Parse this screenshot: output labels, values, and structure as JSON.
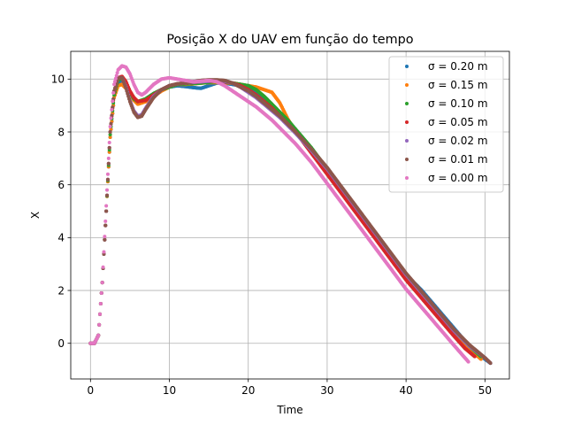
{
  "chart_data": {
    "type": "scatter",
    "title": "Posição X do UAV em função do tempo",
    "xlabel": "Time",
    "ylabel": "X",
    "xlim": [
      -2.5,
      53.1
    ],
    "ylim": [
      -1.35,
      11.05
    ],
    "xticks": [
      0,
      10,
      20,
      30,
      40,
      50
    ],
    "yticks": [
      0,
      2,
      4,
      6,
      8,
      10
    ],
    "grid": true,
    "legend_position": "top-right",
    "series": [
      {
        "name": "σ = 0.20 m",
        "sigma": "0.20",
        "color": "#1f77b4",
        "points": [
          [
            0,
            0
          ],
          [
            0.5,
            0
          ],
          [
            1,
            0.3
          ],
          [
            1.5,
            2.3
          ],
          [
            2,
            5
          ],
          [
            2.5,
            7.8
          ],
          [
            3,
            9.3
          ],
          [
            3.5,
            9.8
          ],
          [
            4,
            9.9
          ],
          [
            4.5,
            9.75
          ],
          [
            5,
            9.5
          ],
          [
            5.5,
            9.3
          ],
          [
            6,
            9.1
          ],
          [
            7,
            9.25
          ],
          [
            8,
            9.45
          ],
          [
            9,
            9.6
          ],
          [
            10,
            9.7
          ],
          [
            11,
            9.75
          ],
          [
            12,
            9.72
          ],
          [
            13,
            9.68
          ],
          [
            14,
            9.65
          ],
          [
            15,
            9.75
          ],
          [
            16,
            9.85
          ],
          [
            17,
            9.85
          ],
          [
            18,
            9.8
          ],
          [
            19,
            9.75
          ],
          [
            20,
            9.7
          ],
          [
            21,
            9.5
          ],
          [
            22,
            9.2
          ],
          [
            23,
            8.9
          ],
          [
            24,
            8.6
          ],
          [
            25,
            8.3
          ],
          [
            26,
            8
          ],
          [
            28,
            7.3
          ],
          [
            30,
            6.5
          ],
          [
            32,
            5.8
          ],
          [
            34,
            5
          ],
          [
            36,
            4.2
          ],
          [
            38,
            3.4
          ],
          [
            40,
            2.6
          ],
          [
            42,
            2
          ],
          [
            44,
            1.3
          ],
          [
            46,
            0.6
          ],
          [
            48,
            -0.1
          ],
          [
            50,
            -0.6
          ],
          [
            50.7,
            -0.75
          ]
        ]
      },
      {
        "name": "σ = 0.15 m",
        "sigma": "0.15",
        "color": "#ff7f0e",
        "points": [
          [
            0,
            0
          ],
          [
            0.5,
            0
          ],
          [
            1,
            0.3
          ],
          [
            1.5,
            2.3
          ],
          [
            2,
            5
          ],
          [
            2.5,
            7.8
          ],
          [
            3,
            9.3
          ],
          [
            3.5,
            9.75
          ],
          [
            4,
            9.8
          ],
          [
            4.5,
            9.65
          ],
          [
            5,
            9.4
          ],
          [
            5.5,
            9.2
          ],
          [
            6,
            9.05
          ],
          [
            7,
            9.15
          ],
          [
            8,
            9.35
          ],
          [
            9,
            9.55
          ],
          [
            10,
            9.7
          ],
          [
            11,
            9.8
          ],
          [
            12,
            9.8
          ],
          [
            13,
            9.82
          ],
          [
            14,
            9.85
          ],
          [
            15,
            9.87
          ],
          [
            16,
            9.87
          ],
          [
            17,
            9.85
          ],
          [
            18,
            9.85
          ],
          [
            19,
            9.8
          ],
          [
            20,
            9.75
          ],
          [
            21,
            9.7
          ],
          [
            22,
            9.6
          ],
          [
            23,
            9.5
          ],
          [
            24,
            9.1
          ],
          [
            25,
            8.5
          ],
          [
            26,
            8
          ],
          [
            28,
            7.3
          ],
          [
            30,
            6.5
          ],
          [
            32,
            5.7
          ],
          [
            34,
            4.9
          ],
          [
            36,
            4.1
          ],
          [
            38,
            3.3
          ],
          [
            40,
            2.6
          ],
          [
            42,
            1.9
          ],
          [
            44,
            1.2
          ],
          [
            46,
            0.5
          ],
          [
            48,
            -0.2
          ],
          [
            49.5,
            -0.6
          ]
        ]
      },
      {
        "name": "σ = 0.10 m",
        "sigma": "0.10",
        "color": "#2ca02c",
        "points": [
          [
            0,
            0
          ],
          [
            0.5,
            0
          ],
          [
            1,
            0.3
          ],
          [
            1.5,
            2.3
          ],
          [
            2,
            5
          ],
          [
            2.5,
            7.9
          ],
          [
            3,
            9.4
          ],
          [
            3.5,
            9.95
          ],
          [
            4,
            10.05
          ],
          [
            4.5,
            9.85
          ],
          [
            5,
            9.5
          ],
          [
            5.5,
            9.25
          ],
          [
            6,
            9.15
          ],
          [
            7,
            9.25
          ],
          [
            8,
            9.45
          ],
          [
            9,
            9.6
          ],
          [
            10,
            9.7
          ],
          [
            11,
            9.8
          ],
          [
            12,
            9.82
          ],
          [
            13,
            9.83
          ],
          [
            14,
            9.85
          ],
          [
            15,
            9.88
          ],
          [
            16,
            9.9
          ],
          [
            17,
            9.88
          ],
          [
            18,
            9.85
          ],
          [
            19,
            9.8
          ],
          [
            20,
            9.75
          ],
          [
            21,
            9.6
          ],
          [
            22,
            9.35
          ],
          [
            23,
            9.05
          ],
          [
            24,
            8.75
          ],
          [
            25,
            8.45
          ],
          [
            26,
            8.1
          ],
          [
            28,
            7.4
          ],
          [
            30,
            6.6
          ],
          [
            32,
            5.8
          ],
          [
            34,
            5
          ],
          [
            36,
            4.2
          ],
          [
            38,
            3.4
          ],
          [
            40,
            2.6
          ],
          [
            42,
            1.9
          ],
          [
            44,
            1.2
          ],
          [
            46,
            0.5
          ],
          [
            48,
            -0.1
          ],
          [
            49.5,
            -0.5
          ]
        ]
      },
      {
        "name": "σ = 0.05 m",
        "sigma": "0.05",
        "color": "#d62728",
        "points": [
          [
            0,
            0
          ],
          [
            0.5,
            0
          ],
          [
            1,
            0.3
          ],
          [
            1.5,
            2.3
          ],
          [
            2,
            5
          ],
          [
            2.5,
            8
          ],
          [
            3,
            9.5
          ],
          [
            3.5,
            10.05
          ],
          [
            4,
            10.1
          ],
          [
            4.5,
            9.9
          ],
          [
            5,
            9.55
          ],
          [
            5.5,
            9.3
          ],
          [
            6,
            9.15
          ],
          [
            7,
            9.2
          ],
          [
            8,
            9.4
          ],
          [
            9,
            9.6
          ],
          [
            10,
            9.75
          ],
          [
            11,
            9.82
          ],
          [
            12,
            9.85
          ],
          [
            13,
            9.87
          ],
          [
            14,
            9.9
          ],
          [
            15,
            9.92
          ],
          [
            16,
            9.92
          ],
          [
            17,
            9.9
          ],
          [
            18,
            9.85
          ],
          [
            19,
            9.75
          ],
          [
            20,
            9.6
          ],
          [
            21,
            9.4
          ],
          [
            22,
            9.15
          ],
          [
            23,
            8.9
          ],
          [
            24,
            8.6
          ],
          [
            25,
            8.3
          ],
          [
            26,
            8
          ],
          [
            28,
            7.2
          ],
          [
            30,
            6.4
          ],
          [
            32,
            5.6
          ],
          [
            34,
            4.8
          ],
          [
            36,
            4
          ],
          [
            38,
            3.2
          ],
          [
            40,
            2.4
          ],
          [
            42,
            1.7
          ],
          [
            44,
            1
          ],
          [
            46,
            0.3
          ],
          [
            47.5,
            -0.2
          ],
          [
            48.7,
            -0.5
          ]
        ]
      },
      {
        "name": "σ = 0.02 m",
        "sigma": "0.02",
        "color": "#9467bd",
        "points": [
          [
            0,
            0
          ],
          [
            0.5,
            0
          ],
          [
            1,
            0.3
          ],
          [
            1.5,
            2.3
          ],
          [
            2,
            5
          ],
          [
            2.5,
            8
          ],
          [
            3,
            9.55
          ],
          [
            3.5,
            10.05
          ],
          [
            4,
            10.05
          ],
          [
            4.5,
            9.7
          ],
          [
            5,
            9.2
          ],
          [
            5.5,
            8.8
          ],
          [
            6,
            8.6
          ],
          [
            6.5,
            8.65
          ],
          [
            7,
            8.9
          ],
          [
            8,
            9.35
          ],
          [
            9,
            9.6
          ],
          [
            10,
            9.75
          ],
          [
            11,
            9.82
          ],
          [
            12,
            9.85
          ],
          [
            13,
            9.88
          ],
          [
            14,
            9.9
          ],
          [
            15,
            9.92
          ],
          [
            16,
            9.95
          ],
          [
            17,
            9.92
          ],
          [
            18,
            9.85
          ],
          [
            19,
            9.7
          ],
          [
            20,
            9.5
          ],
          [
            21,
            9.3
          ],
          [
            22,
            9.05
          ],
          [
            23,
            8.8
          ],
          [
            24,
            8.55
          ],
          [
            25,
            8.25
          ],
          [
            26,
            7.95
          ],
          [
            28,
            7.3
          ],
          [
            30,
            6.6
          ],
          [
            32,
            5.8
          ],
          [
            34,
            5
          ],
          [
            36,
            4.2
          ],
          [
            38,
            3.4
          ],
          [
            40,
            2.6
          ],
          [
            42,
            1.9
          ],
          [
            44,
            1.2
          ],
          [
            46,
            0.5
          ],
          [
            48,
            -0.1
          ],
          [
            50,
            -0.55
          ],
          [
            50.7,
            -0.75
          ]
        ]
      },
      {
        "name": "σ = 0.01 m",
        "sigma": "0.01",
        "color": "#8c564b",
        "points": [
          [
            0,
            0
          ],
          [
            0.5,
            0
          ],
          [
            1,
            0.3
          ],
          [
            1.5,
            2.3
          ],
          [
            2,
            5
          ],
          [
            2.5,
            8
          ],
          [
            3,
            9.55
          ],
          [
            3.5,
            10.05
          ],
          [
            4,
            10.05
          ],
          [
            4.5,
            9.65
          ],
          [
            5,
            9.15
          ],
          [
            5.5,
            8.75
          ],
          [
            6,
            8.55
          ],
          [
            6.5,
            8.6
          ],
          [
            7,
            8.85
          ],
          [
            8,
            9.3
          ],
          [
            9,
            9.6
          ],
          [
            10,
            9.75
          ],
          [
            11,
            9.82
          ],
          [
            12,
            9.85
          ],
          [
            13,
            9.9
          ],
          [
            14,
            9.95
          ],
          [
            15,
            9.97
          ],
          [
            16,
            9.97
          ],
          [
            17,
            9.95
          ],
          [
            18,
            9.85
          ],
          [
            19,
            9.7
          ],
          [
            20,
            9.55
          ],
          [
            21,
            9.35
          ],
          [
            22,
            9.1
          ],
          [
            23,
            8.85
          ],
          [
            24,
            8.6
          ],
          [
            25,
            8.3
          ],
          [
            26,
            8
          ],
          [
            28,
            7.35
          ],
          [
            30,
            6.65
          ],
          [
            32,
            5.85
          ],
          [
            34,
            5.05
          ],
          [
            36,
            4.25
          ],
          [
            38,
            3.45
          ],
          [
            40,
            2.65
          ],
          [
            42,
            1.95
          ],
          [
            44,
            1.25
          ],
          [
            46,
            0.55
          ],
          [
            48,
            -0.05
          ],
          [
            50,
            -0.55
          ],
          [
            50.7,
            -0.75
          ]
        ]
      },
      {
        "name": "σ = 0.00 m",
        "sigma": "0.00",
        "color": "#e377c2",
        "points": [
          [
            0,
            0
          ],
          [
            0.5,
            0
          ],
          [
            1,
            0.3
          ],
          [
            1.5,
            2.3
          ],
          [
            2,
            5.2
          ],
          [
            2.5,
            8.2
          ],
          [
            3,
            9.8
          ],
          [
            3.5,
            10.35
          ],
          [
            4,
            10.5
          ],
          [
            4.5,
            10.45
          ],
          [
            5,
            10.2
          ],
          [
            5.5,
            9.8
          ],
          [
            6,
            9.5
          ],
          [
            6.5,
            9.4
          ],
          [
            7,
            9.5
          ],
          [
            8,
            9.8
          ],
          [
            9,
            10
          ],
          [
            10,
            10.05
          ],
          [
            11,
            10
          ],
          [
            12,
            9.95
          ],
          [
            13,
            9.9
          ],
          [
            14,
            9.92
          ],
          [
            15,
            9.95
          ],
          [
            16,
            9.9
          ],
          [
            17,
            9.75
          ],
          [
            18,
            9.55
          ],
          [
            19,
            9.35
          ],
          [
            20,
            9.15
          ],
          [
            21,
            8.95
          ],
          [
            22,
            8.7
          ],
          [
            23,
            8.45
          ],
          [
            24,
            8.15
          ],
          [
            25,
            7.85
          ],
          [
            26,
            7.55
          ],
          [
            28,
            6.85
          ],
          [
            30,
            6.05
          ],
          [
            32,
            5.25
          ],
          [
            34,
            4.45
          ],
          [
            36,
            3.65
          ],
          [
            38,
            2.85
          ],
          [
            40,
            2.05
          ],
          [
            42,
            1.35
          ],
          [
            44,
            0.65
          ],
          [
            46,
            -0.05
          ],
          [
            47.9,
            -0.7
          ]
        ]
      }
    ]
  }
}
